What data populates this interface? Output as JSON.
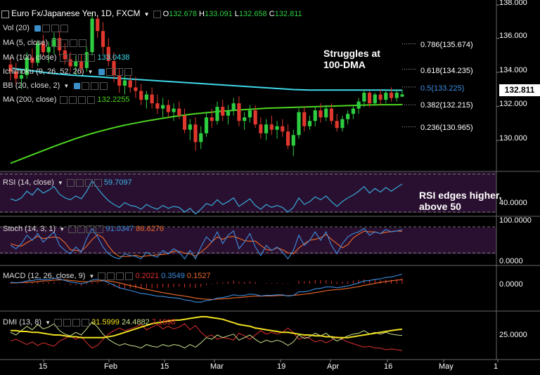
{
  "header": {
    "symbol": "Euro Fx/Japanese Yen, 1D, FXCM",
    "o_label": "O",
    "o": "132.678",
    "h_label": "H",
    "h": "133.091",
    "l_label": "L",
    "l": "132.658",
    "c_label": "C",
    "c": "132.811"
  },
  "indicators": {
    "vol": "Vol (20)",
    "ma5": "MA (5, close)",
    "ma100": "MA (100, close)",
    "ma100_value": "133.0438",
    "ichimoku": "Ichimoku (9, 26, 52, 26)",
    "bb": "BB (20, close, 2)",
    "ma200": "MA (200, close)",
    "ma200_value": "132.2255",
    "rsi": "RSI (14, close)",
    "rsi_value": "59.7097",
    "stoch": "Stoch (14, 3, 1)",
    "stoch_k": "91.0347",
    "stoch_d": "86.6276",
    "macd": "MACD (12, 26, close, 9)",
    "macd_hist": "0.2021",
    "macd_line": "0.3549",
    "macd_signal": "0.1527",
    "dmi": "DMI (13, 8)",
    "dmi_adx": "31.5999",
    "dmi_plus": "24.4882",
    "dmi_minus": "7.1898"
  },
  "fib": [
    {
      "label": "0.786(135.674)",
      "price": 135.674
    },
    {
      "label": "0.618(134.235)",
      "price": 134.235
    },
    {
      "label": "0.5(133.225)",
      "price": 133.225
    },
    {
      "label": "0.382(132.215)",
      "price": 132.215
    },
    {
      "label": "0.236(130.965)",
      "price": 130.965
    }
  ],
  "annotations": {
    "dma": "Struggles at\n100-DMA",
    "rsi": "RSI edges higher,\nabove 50"
  },
  "axes": {
    "price_ticks": [
      "138.000",
      "136.000",
      "134.000",
      "132.000",
      "130.000"
    ],
    "last_price": "132.811",
    "rsi_tick": "40.0000",
    "stoch_ticks": [
      "100.0000",
      "0.0000"
    ],
    "macd_tick": "0.0000",
    "dmi_tick": "25.0000",
    "x_ticks": [
      "15",
      "Feb",
      "15",
      "Mar",
      "19",
      "Apr",
      "16",
      "May",
      "1"
    ]
  },
  "colors": {
    "up": "#2ecc40",
    "down": "#e0382e",
    "ma100": "#3fd8e8",
    "ma200": "#4cd620",
    "rsi": "#35b6e8",
    "stoch_k": "#3c8ee0",
    "stoch_d": "#ef6a2a",
    "macd_line": "#3c8ee0",
    "macd_signal": "#ef6a2a",
    "macd_hist": "#e03030",
    "adx": "#f0e020",
    "di_plus": "#c8e08c",
    "di_minus": "#e03030",
    "panel_band": "#2a1030"
  },
  "chart_data": {
    "type": "candlestick",
    "title": "Euro Fx/Japanese Yen, 1D, FXCM",
    "x_ticks": [
      "15",
      "Feb",
      "15",
      "Mar",
      "19",
      "Apr",
      "16",
      "May",
      "1"
    ],
    "ylim": [
      128.6,
      138.0
    ],
    "candles": [
      [
        134.5,
        134.9,
        133.6,
        134.1
      ],
      [
        134.1,
        134.6,
        133.4,
        133.7
      ],
      [
        133.7,
        134.2,
        133.1,
        133.9
      ],
      [
        133.9,
        135.2,
        133.7,
        134.9
      ],
      [
        134.9,
        135.4,
        134.3,
        134.6
      ],
      [
        134.6,
        135.9,
        134.4,
        135.7
      ],
      [
        135.7,
        136.2,
        135.0,
        135.2
      ],
      [
        135.2,
        135.8,
        134.6,
        135.5
      ],
      [
        135.5,
        136.3,
        135.1,
        136.0
      ],
      [
        136.0,
        136.4,
        135.0,
        135.3
      ],
      [
        135.3,
        135.7,
        134.5,
        134.8
      ],
      [
        134.8,
        135.2,
        134.1,
        134.4
      ],
      [
        134.4,
        135.0,
        133.9,
        134.7
      ],
      [
        134.7,
        135.1,
        134.0,
        134.3
      ],
      [
        134.3,
        135.5,
        134.1,
        135.2
      ],
      [
        135.2,
        137.5,
        135.0,
        137.1
      ],
      [
        137.1,
        137.3,
        136.0,
        136.4
      ],
      [
        136.4,
        136.9,
        135.1,
        135.5
      ],
      [
        135.5,
        136.0,
        134.4,
        134.7
      ],
      [
        134.7,
        135.2,
        133.5,
        133.9
      ],
      [
        133.9,
        134.3,
        132.9,
        133.3
      ],
      [
        133.3,
        134.0,
        132.8,
        133.6
      ],
      [
        133.6,
        133.9,
        132.9,
        133.2
      ],
      [
        133.2,
        133.8,
        132.6,
        133.0
      ],
      [
        133.0,
        133.4,
        132.2,
        132.5
      ],
      [
        132.5,
        133.0,
        132.0,
        132.8
      ],
      [
        132.8,
        133.2,
        132.0,
        132.3
      ],
      [
        132.3,
        132.8,
        131.7,
        132.0
      ],
      [
        132.0,
        132.6,
        131.5,
        132.2
      ],
      [
        132.2,
        132.5,
        131.5,
        131.8
      ],
      [
        131.8,
        132.3,
        131.3,
        132.0
      ],
      [
        132.0,
        132.4,
        131.4,
        131.6
      ],
      [
        131.6,
        132.0,
        130.6,
        130.8
      ],
      [
        130.8,
        131.4,
        130.2,
        131.1
      ],
      [
        131.1,
        131.5,
        129.6,
        130.1
      ],
      [
        130.1,
        131.0,
        129.7,
        130.6
      ],
      [
        130.6,
        131.8,
        130.4,
        131.5
      ],
      [
        131.5,
        132.0,
        130.9,
        131.3
      ],
      [
        131.3,
        132.4,
        131.1,
        132.1
      ],
      [
        132.1,
        132.5,
        131.3,
        131.6
      ],
      [
        131.6,
        132.2,
        131.1,
        131.9
      ],
      [
        131.9,
        132.6,
        131.6,
        132.3
      ],
      [
        132.3,
        132.7,
        131.0,
        131.3
      ],
      [
        131.3,
        131.8,
        130.8,
        131.5
      ],
      [
        131.5,
        132.2,
        131.2,
        131.9
      ],
      [
        131.9,
        132.2,
        130.9,
        131.1
      ],
      [
        131.1,
        131.5,
        130.3,
        130.6
      ],
      [
        130.6,
        131.4,
        130.2,
        131.1
      ],
      [
        131.1,
        131.6,
        130.5,
        130.8
      ],
      [
        130.8,
        131.3,
        130.3,
        131.0
      ],
      [
        131.0,
        131.4,
        130.4,
        130.7
      ],
      [
        130.7,
        131.1,
        129.7,
        129.9
      ],
      [
        129.9,
        130.8,
        129.3,
        130.5
      ],
      [
        130.5,
        132.0,
        130.3,
        131.8
      ],
      [
        131.8,
        132.1,
        130.7,
        131.0
      ],
      [
        131.0,
        131.6,
        130.8,
        131.3
      ],
      [
        131.3,
        132.1,
        131.0,
        131.9
      ],
      [
        131.9,
        132.3,
        131.2,
        131.5
      ],
      [
        131.5,
        132.2,
        131.3,
        132.0
      ],
      [
        132.0,
        132.3,
        131.1,
        131.3
      ],
      [
        131.3,
        131.7,
        130.7,
        130.9
      ],
      [
        130.9,
        131.6,
        130.7,
        131.4
      ],
      [
        131.4,
        131.9,
        131.1,
        131.7
      ],
      [
        131.7,
        132.2,
        131.4,
        132.0
      ],
      [
        132.0,
        132.6,
        131.7,
        132.4
      ],
      [
        132.4,
        133.1,
        132.1,
        132.9
      ],
      [
        132.9,
        133.0,
        132.1,
        132.3
      ],
      [
        132.3,
        132.9,
        132.2,
        132.8
      ],
      [
        132.8,
        133.1,
        132.2,
        132.5
      ],
      [
        132.5,
        133.0,
        132.3,
        132.9
      ],
      [
        132.9,
        133.2,
        132.4,
        132.6
      ],
      [
        132.6,
        133.1,
        132.4,
        132.9
      ],
      [
        132.68,
        133.09,
        132.66,
        132.81
      ]
    ],
    "ma100": [
      134.3,
      134.26,
      134.22,
      134.18,
      134.14,
      134.1,
      134.06,
      134.02,
      133.99,
      133.96,
      133.93,
      133.9,
      133.88,
      133.86,
      133.84,
      133.82,
      133.8,
      133.78,
      133.76,
      133.74,
      133.72,
      133.7,
      133.68,
      133.66,
      133.64,
      133.62,
      133.6,
      133.58,
      133.56,
      133.54,
      133.52,
      133.5,
      133.48,
      133.46,
      133.44,
      133.42,
      133.4,
      133.38,
      133.36,
      133.34,
      133.32,
      133.3,
      133.28,
      133.26,
      133.24,
      133.22,
      133.2,
      133.18,
      133.16,
      133.14,
      133.12,
      133.1,
      133.08,
      133.07,
      133.06,
      133.05,
      133.05,
      133.05,
      133.05,
      133.05,
      133.05,
      133.05,
      133.05,
      133.05,
      133.05,
      133.05,
      133.05,
      133.05,
      133.05,
      133.05,
      133.04,
      133.04,
      133.04
    ],
    "ma200": [
      128.9,
      129.02,
      129.14,
      129.26,
      129.38,
      129.5,
      129.62,
      129.74,
      129.86,
      129.97,
      130.08,
      130.19,
      130.3,
      130.4,
      130.5,
      130.59,
      130.68,
      130.76,
      130.84,
      130.92,
      130.99,
      131.06,
      131.12,
      131.18,
      131.24,
      131.3,
      131.35,
      131.4,
      131.45,
      131.5,
      131.55,
      131.59,
      131.63,
      131.67,
      131.71,
      131.74,
      131.77,
      131.8,
      131.83,
      131.86,
      131.88,
      131.9,
      131.92,
      131.94,
      131.96,
      131.98,
      132.0,
      132.02,
      132.03,
      132.04,
      132.05,
      132.06,
      132.07,
      132.08,
      132.09,
      132.1,
      132.11,
      132.12,
      132.13,
      132.14,
      132.15,
      132.16,
      132.17,
      132.18,
      132.19,
      132.2,
      132.21,
      132.21,
      132.22,
      132.22,
      132.22,
      132.22,
      132.23
    ],
    "rsi": [
      44,
      42,
      45,
      52,
      48,
      55,
      50,
      53,
      57,
      49,
      45,
      43,
      47,
      44,
      52,
      63,
      55,
      48,
      42,
      38,
      35,
      40,
      37,
      36,
      33,
      38,
      35,
      33,
      37,
      34,
      36,
      35,
      30,
      34,
      28,
      33,
      39,
      37,
      43,
      38,
      41,
      45,
      36,
      40,
      44,
      37,
      33,
      38,
      35,
      37,
      35,
      30,
      35,
      45,
      38,
      41,
      46,
      43,
      47,
      41,
      36,
      41,
      45,
      48,
      52,
      57,
      50,
      55,
      51,
      56,
      52,
      56,
      59.7
    ],
    "stoch_k": [
      45,
      35,
      50,
      75,
      60,
      80,
      55,
      70,
      85,
      45,
      30,
      20,
      40,
      25,
      65,
      95,
      70,
      40,
      20,
      10,
      5,
      20,
      15,
      12,
      5,
      25,
      15,
      10,
      30,
      20,
      35,
      25,
      5,
      30,
      5,
      40,
      70,
      55,
      85,
      50,
      75,
      88,
      35,
      55,
      80,
      40,
      15,
      45,
      30,
      40,
      25,
      5,
      30,
      75,
      45,
      60,
      85,
      60,
      85,
      45,
      20,
      50,
      70,
      80,
      85,
      95,
      75,
      85,
      80,
      92,
      85,
      88,
      91
    ],
    "stoch_d": [
      50,
      45,
      43,
      53,
      62,
      72,
      65,
      68,
      70,
      67,
      53,
      32,
      30,
      28,
      43,
      62,
      77,
      68,
      43,
      23,
      12,
      12,
      13,
      16,
      11,
      14,
      15,
      17,
      18,
      20,
      28,
      27,
      22,
      20,
      13,
      25,
      38,
      55,
      70,
      63,
      70,
      71,
      66,
      59,
      57,
      58,
      45,
      33,
      30,
      38,
      32,
      23,
      20,
      37,
      50,
      60,
      63,
      68,
      77,
      63,
      50,
      38,
      47,
      67,
      78,
      87,
      85,
      85,
      80,
      84,
      86,
      88,
      86.6
    ],
    "macd": [
      0.05,
      0.04,
      0.05,
      0.1,
      0.12,
      0.16,
      0.15,
      0.16,
      0.2,
      0.17,
      0.12,
      0.06,
      0.04,
      0.0,
      0.04,
      0.14,
      0.16,
      0.12,
      0.04,
      -0.05,
      -0.15,
      -0.2,
      -0.25,
      -0.3,
      -0.36,
      -0.38,
      -0.42,
      -0.46,
      -0.47,
      -0.5,
      -0.52,
      -0.54,
      -0.6,
      -0.62,
      -0.68,
      -0.68,
      -0.62,
      -0.6,
      -0.53,
      -0.51,
      -0.47,
      -0.41,
      -0.44,
      -0.43,
      -0.38,
      -0.4,
      -0.45,
      -0.43,
      -0.43,
      -0.41,
      -0.41,
      -0.46,
      -0.43,
      -0.3,
      -0.3,
      -0.26,
      -0.19,
      -0.17,
      -0.12,
      -0.12,
      -0.15,
      -0.12,
      -0.08,
      -0.03,
      0.03,
      0.1,
      0.12,
      0.16,
      0.18,
      0.23,
      0.25,
      0.3,
      0.35
    ],
    "macd_signal": [
      0.03,
      0.03,
      0.04,
      0.05,
      0.06,
      0.08,
      0.1,
      0.11,
      0.13,
      0.14,
      0.14,
      0.12,
      0.1,
      0.08,
      0.07,
      0.09,
      0.1,
      0.11,
      0.1,
      0.07,
      0.03,
      -0.02,
      -0.07,
      -0.11,
      -0.16,
      -0.21,
      -0.25,
      -0.29,
      -0.33,
      -0.36,
      -0.4,
      -0.43,
      -0.46,
      -0.49,
      -0.53,
      -0.56,
      -0.57,
      -0.58,
      -0.57,
      -0.56,
      -0.55,
      -0.52,
      -0.51,
      -0.49,
      -0.47,
      -0.46,
      -0.46,
      -0.45,
      -0.45,
      -0.44,
      -0.43,
      -0.44,
      -0.43,
      -0.41,
      -0.39,
      -0.36,
      -0.33,
      -0.3,
      -0.26,
      -0.23,
      -0.22,
      -0.2,
      -0.17,
      -0.14,
      -0.11,
      -0.06,
      -0.03,
      0.01,
      0.05,
      0.08,
      0.11,
      0.13,
      0.15
    ],
    "adx": [
      30,
      30,
      29,
      29,
      28,
      28,
      27,
      26,
      25,
      25,
      24,
      23,
      23,
      22,
      22,
      22,
      22,
      22,
      23,
      24,
      26,
      28,
      30,
      32,
      34,
      36,
      38,
      39,
      40,
      41,
      42,
      42,
      43,
      44,
      45,
      46,
      46,
      45,
      44,
      43,
      41,
      39,
      37,
      36,
      35,
      33,
      32,
      31,
      30,
      29,
      28,
      28,
      27,
      26,
      25,
      25,
      24,
      24,
      23,
      23,
      22,
      22,
      22,
      23,
      24,
      25,
      26,
      27,
      28,
      29,
      30,
      31,
      31.6
    ],
    "di_plus": [
      28,
      25,
      30,
      35,
      31,
      37,
      32,
      34,
      38,
      30,
      26,
      24,
      28,
      25,
      32,
      40,
      34,
      26,
      20,
      16,
      13,
      15,
      13,
      12,
      10,
      14,
      12,
      11,
      14,
      12,
      14,
      13,
      10,
      14,
      11,
      16,
      22,
      20,
      25,
      22,
      24,
      26,
      19,
      22,
      25,
      20,
      16,
      19,
      17,
      19,
      17,
      13,
      17,
      25,
      21,
      23,
      27,
      24,
      27,
      22,
      18,
      21,
      24,
      26,
      27,
      30,
      26,
      28,
      26,
      28,
      26,
      25,
      24.5
    ],
    "di_minus": [
      18,
      20,
      17,
      14,
      17,
      13,
      16,
      14,
      12,
      18,
      21,
      24,
      20,
      23,
      16,
      10,
      13,
      20,
      26,
      30,
      33,
      30,
      32,
      34,
      37,
      31,
      34,
      37,
      32,
      35,
      32,
      34,
      38,
      31,
      36,
      28,
      23,
      25,
      20,
      22,
      21,
      19,
      27,
      24,
      20,
      25,
      30,
      26,
      28,
      26,
      28,
      33,
      28,
      20,
      23,
      21,
      17,
      19,
      16,
      19,
      23,
      20,
      17,
      15,
      13,
      11,
      12,
      10,
      10,
      8,
      9,
      8,
      7.2
    ]
  }
}
